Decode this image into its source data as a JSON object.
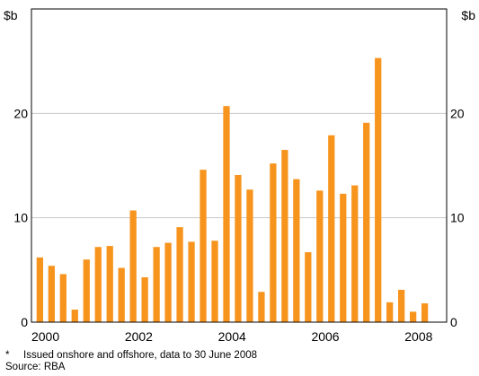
{
  "chart_data": {
    "type": "bar",
    "title": "",
    "subtitle": "",
    "y_unit_left": "$b",
    "y_unit_right": "$b",
    "ylim": [
      0,
      30
    ],
    "yticks": [
      0,
      10,
      20
    ],
    "xlim": [
      1999.7,
      2008.6
    ],
    "xticks": [
      {
        "value": 2000,
        "label": "2000"
      },
      {
        "value": 2002,
        "label": "2002"
      },
      {
        "value": 2004,
        "label": "2004"
      },
      {
        "value": 2006,
        "label": "2006"
      },
      {
        "value": 2008,
        "label": "2008"
      }
    ],
    "grid": true,
    "bar_color": "#f7941d",
    "x": [
      "2000 Q1",
      "2000 Q2",
      "2000 Q3",
      "2000 Q4",
      "2001 Q1",
      "2001 Q2",
      "2001 Q3",
      "2001 Q4",
      "2002 Q1",
      "2002 Q2",
      "2002 Q3",
      "2002 Q4",
      "2003 Q1",
      "2003 Q2",
      "2003 Q3",
      "2003 Q4",
      "2004 Q1",
      "2004 Q2",
      "2004 Q3",
      "2004 Q4",
      "2005 Q1",
      "2005 Q2",
      "2005 Q3",
      "2005 Q4",
      "2006 Q1",
      "2006 Q2",
      "2006 Q3",
      "2006 Q4",
      "2007 Q1",
      "2007 Q2",
      "2007 Q3",
      "2007 Q4",
      "2008 Q1",
      "2008 Q2",
      "2008 Q3"
    ],
    "values": [
      6.2,
      5.4,
      4.6,
      1.2,
      6.0,
      7.2,
      7.3,
      5.2,
      10.7,
      4.3,
      7.2,
      7.6,
      9.1,
      7.7,
      14.6,
      7.8,
      20.7,
      14.1,
      12.7,
      2.9,
      15.2,
      16.5,
      13.7,
      6.7,
      12.6,
      17.9,
      12.3,
      13.1,
      19.1,
      25.3,
      1.9,
      3.1,
      1.0,
      1.8,
      0
    ]
  },
  "footnote_marker": "*",
  "footnote": "Issued onshore and offshore, data to 30 June 2008",
  "source": "Source: RBA"
}
